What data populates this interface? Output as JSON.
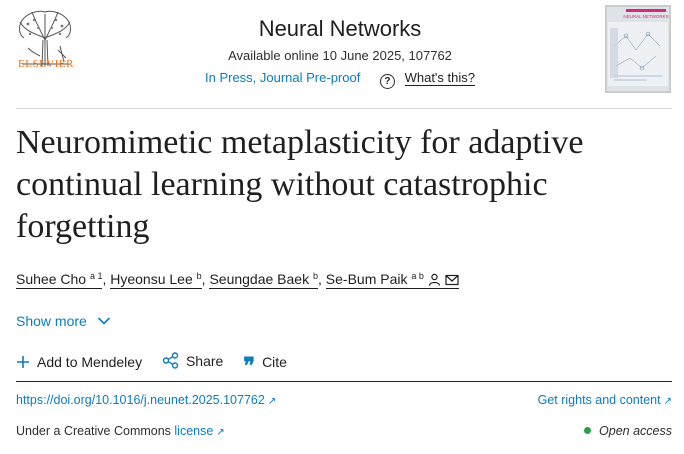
{
  "header": {
    "publisher": "ELSEVIER",
    "journal": "Neural Networks",
    "available": "Available online 10 June 2025, 107762",
    "status_link": "In Press, Journal Pre-proof",
    "help_label": "What's this?",
    "cover_title": "NEURAL NETWORKS"
  },
  "article": {
    "title": "Neuromimetic metaplasticity for adaptive continual learning without catastrophic forgetting"
  },
  "authors": [
    {
      "name": "Suhee Cho",
      "sup": "a 1"
    },
    {
      "name": "Hyeonsu Lee",
      "sup": "b"
    },
    {
      "name": "Seungdae Baek",
      "sup": "b"
    },
    {
      "name": "Se-Bum Paik",
      "sup": "a b"
    }
  ],
  "show_more": "Show more",
  "actions": {
    "mendeley": "Add to Mendeley",
    "share": "Share",
    "cite": "Cite"
  },
  "links": {
    "doi": "https://doi.org/10.1016/j.neunet.2025.107762",
    "rights": "Get rights and content",
    "cc_prefix": "Under a Creative Commons",
    "cc_link": "license",
    "open_access": "Open access"
  },
  "colors": {
    "link": "#0c7dbb",
    "publisher_orange": "#e9711c",
    "open_access_green": "#2aa149"
  },
  "icons": {
    "help": "question-circle-icon",
    "person": "person-icon",
    "mail": "envelope-icon",
    "plus": "plus-icon",
    "share": "share-icon",
    "cite": "quote-icon",
    "external": "external-link-icon",
    "chevron": "chevron-down-icon"
  }
}
